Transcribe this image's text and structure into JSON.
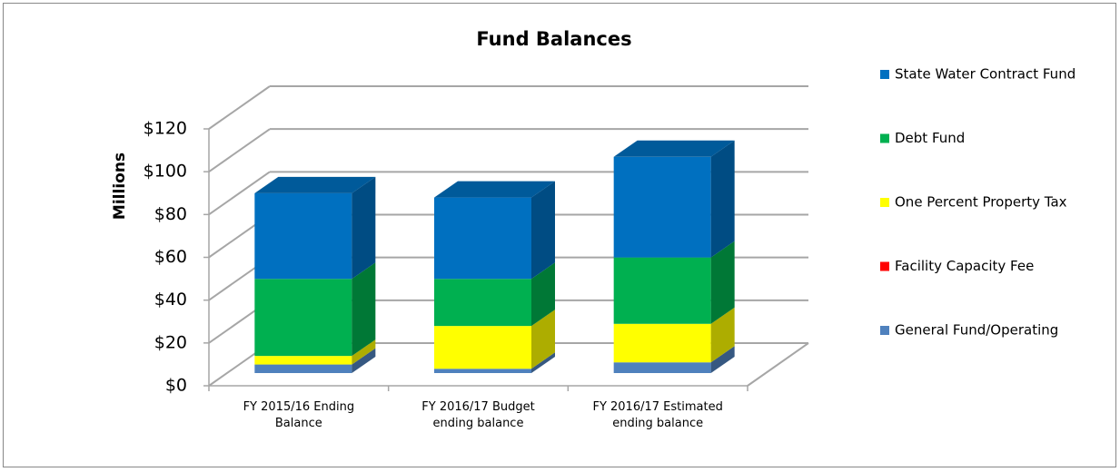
{
  "chart_data": {
    "type": "bar3d_stacked",
    "title": "Fund Balances",
    "y_label": "Millions",
    "categories": [
      "FY 2015/16 Ending Balance",
      "FY 2016/17 Budget ending balance",
      "FY 2016/17 Estimated ending balance"
    ],
    "series": [
      {
        "name": "General Fund/Operating",
        "color": "#4f81bd",
        "values": [
          4,
          2,
          5
        ]
      },
      {
        "name": "Facility Capacity Fee",
        "color": "#ff0000",
        "values": [
          0,
          0,
          0
        ]
      },
      {
        "name": "One Percent Property Tax",
        "color": "#ffff00",
        "values": [
          4,
          20,
          18
        ]
      },
      {
        "name": "Debt Fund",
        "color": "#00b050",
        "values": [
          36,
          22,
          31
        ]
      },
      {
        "name": "State Water Contract Fund",
        "color": "#0070c0",
        "values": [
          40,
          38,
          47
        ]
      }
    ],
    "ylim": [
      0,
      120
    ],
    "yticks": [
      {
        "value": 0,
        "label": "$0"
      },
      {
        "value": 20,
        "label": "$20"
      },
      {
        "value": 40,
        "label": "$40"
      },
      {
        "value": 60,
        "label": "$60"
      },
      {
        "value": 80,
        "label": "$80"
      },
      {
        "value": 100,
        "label": "$100"
      },
      {
        "value": 120,
        "label": "$120"
      }
    ],
    "grid": true,
    "legend": "right"
  }
}
